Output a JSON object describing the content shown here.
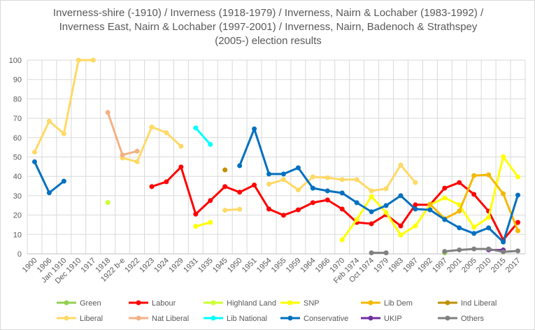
{
  "chart_data": {
    "type": "line",
    "title_lines": [
      "Inverness-shire (-1910) / Inverness (1918-1979) / Inverness, Nairn & Lochaber (1983-1992) /",
      "Inverness East, Nairn & Lochaber (1997-2001) / Inverness, Nairn, Badenoch & Strathspey",
      "(2005-) election results"
    ],
    "xlabel": "",
    "ylabel": "",
    "ylim": [
      0,
      100
    ],
    "yticks": [
      0,
      10,
      20,
      30,
      40,
      50,
      60,
      70,
      80,
      90,
      100
    ],
    "grid": true,
    "legend_position": "bottom",
    "categories": [
      "1900",
      "1906",
      "Jan 1910",
      "Dec 1910",
      "1917",
      "1918",
      "1922 b-e",
      "1922",
      "1923",
      "1924",
      "1929",
      "1931",
      "1935",
      "1945",
      "1950",
      "1951",
      "1954",
      "1955",
      "1959",
      "1964",
      "1966",
      "1970",
      "Feb 1974",
      "Oct 1974",
      "1979",
      "1983",
      "1987",
      "1992",
      "1997",
      "2001",
      "2005",
      "2010",
      "2015",
      "2017"
    ],
    "series": [
      {
        "name": "Green",
        "color": "#92d050",
        "values": [
          null,
          null,
          null,
          null,
          null,
          null,
          null,
          null,
          null,
          null,
          null,
          null,
          null,
          null,
          null,
          null,
          null,
          null,
          null,
          null,
          null,
          null,
          null,
          null,
          null,
          null,
          null,
          null,
          0.5,
          null,
          null,
          null,
          null,
          null
        ]
      },
      {
        "name": "Labour",
        "color": "#ff0000",
        "values": [
          null,
          null,
          null,
          null,
          null,
          null,
          null,
          null,
          34.7,
          37.2,
          44.8,
          20.5,
          27.5,
          34.7,
          31.8,
          35.5,
          23.1,
          19.9,
          22.7,
          26.4,
          27.8,
          23.1,
          16.2,
          15.5,
          20.2,
          14.4,
          25.3,
          25.3,
          33.9,
          36.8,
          30.7,
          22,
          7.2,
          16.2
        ]
      },
      {
        "name": "Highland Land",
        "color": "#ccff33",
        "values": [
          null,
          null,
          null,
          null,
          null,
          26.5,
          null,
          null,
          null,
          null,
          null,
          null,
          null,
          null,
          null,
          null,
          null,
          null,
          null,
          null,
          null,
          null,
          null,
          null,
          null,
          null,
          null,
          null,
          null,
          null,
          null,
          null,
          null,
          null
        ]
      },
      {
        "name": "SNP",
        "color": "#ffff00",
        "values": [
          null,
          null,
          null,
          null,
          null,
          null,
          null,
          null,
          null,
          null,
          null,
          14.2,
          16.2,
          null,
          null,
          null,
          null,
          null,
          null,
          null,
          null,
          7.2,
          17.7,
          29.6,
          21.3,
          9.7,
          14.4,
          25.3,
          28.9,
          25.3,
          13.7,
          18.8,
          50.2,
          39.7
        ]
      },
      {
        "name": "Lib Dem",
        "color": "#f5b800",
        "values": [
          null,
          null,
          null,
          null,
          null,
          null,
          null,
          null,
          null,
          null,
          null,
          null,
          null,
          null,
          null,
          null,
          null,
          null,
          null,
          null,
          null,
          null,
          null,
          null,
          null,
          null,
          null,
          25.6,
          18.1,
          22,
          40.4,
          40.8,
          31,
          11.9
        ]
      },
      {
        "name": "Ind Liberal",
        "color": "#bf9000",
        "values": [
          null,
          null,
          null,
          null,
          null,
          null,
          null,
          null,
          null,
          null,
          null,
          null,
          null,
          43.3,
          null,
          null,
          null,
          null,
          null,
          null,
          null,
          null,
          null,
          null,
          null,
          null,
          null,
          null,
          null,
          null,
          null,
          null,
          null,
          null
        ]
      },
      {
        "name": "Liberal",
        "color": "#ffd966",
        "values": [
          52.5,
          68.5,
          62,
          100,
          100,
          null,
          49.5,
          47.5,
          65.5,
          62.5,
          55.5,
          null,
          null,
          22.5,
          23,
          null,
          36,
          38.3,
          33,
          39.7,
          39.3,
          38.3,
          38.3,
          32.5,
          33.6,
          45.8,
          36.8,
          null,
          null,
          null,
          null,
          null,
          null,
          null
        ]
      },
      {
        "name": "Nat Liberal",
        "color": "#f4b183",
        "values": [
          null,
          null,
          null,
          null,
          null,
          73,
          51,
          53,
          null,
          null,
          null,
          null,
          null,
          null,
          null,
          null,
          null,
          null,
          null,
          null,
          null,
          null,
          null,
          null,
          null,
          null,
          null,
          null,
          null,
          null,
          null,
          null,
          null,
          null
        ]
      },
      {
        "name": "Lib National",
        "color": "#00ffff",
        "values": [
          null,
          null,
          null,
          null,
          null,
          null,
          null,
          null,
          null,
          null,
          null,
          65,
          56.5,
          null,
          null,
          null,
          null,
          null,
          null,
          null,
          null,
          null,
          null,
          null,
          null,
          null,
          null,
          null,
          null,
          null,
          null,
          null,
          null,
          null
        ]
      },
      {
        "name": "Conservative",
        "color": "#0070c0",
        "values": [
          47.5,
          31.5,
          37.5,
          null,
          null,
          null,
          null,
          null,
          null,
          null,
          null,
          null,
          null,
          null,
          45.5,
          64.5,
          41.2,
          41.2,
          44.4,
          33.9,
          32.5,
          31.4,
          26.4,
          21.7,
          24.9,
          30,
          23.1,
          22.7,
          17.7,
          13.4,
          10.5,
          13.4,
          6.1,
          30.3
        ]
      },
      {
        "name": "UKIP",
        "color": "#7030a0",
        "values": [
          null,
          null,
          null,
          null,
          null,
          null,
          null,
          null,
          null,
          null,
          null,
          null,
          null,
          null,
          null,
          null,
          null,
          null,
          null,
          null,
          null,
          null,
          null,
          null,
          null,
          null,
          null,
          null,
          null,
          null,
          null,
          2,
          2,
          null
        ]
      },
      {
        "name": "Others",
        "color": "#808080",
        "values": [
          null,
          null,
          null,
          null,
          null,
          null,
          null,
          null,
          null,
          null,
          null,
          null,
          null,
          null,
          null,
          null,
          null,
          null,
          null,
          null,
          null,
          null,
          null,
          0.5,
          0.5,
          null,
          null,
          null,
          1.2,
          2,
          2.5,
          2.5,
          1,
          1.5
        ]
      }
    ]
  }
}
